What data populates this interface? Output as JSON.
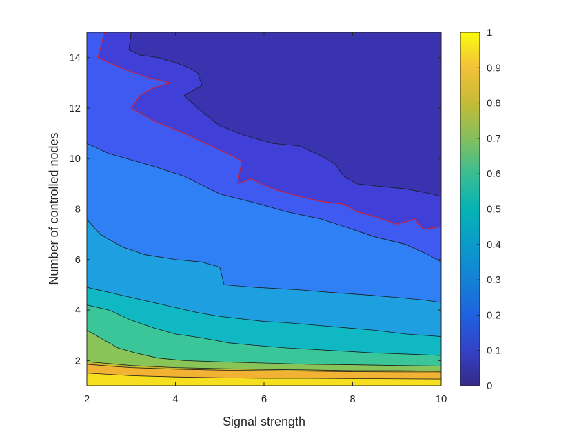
{
  "chart_data": {
    "type": "contour",
    "title": "",
    "xlabel": "Signal strength",
    "ylabel": "Number of controlled nodes",
    "xlim": [
      2,
      10
    ],
    "ylim": [
      1,
      15
    ],
    "x_ticks": [
      2,
      4,
      6,
      8,
      10
    ],
    "y_ticks": [
      2,
      4,
      6,
      8,
      10,
      12,
      14
    ],
    "colorbar": {
      "range": [
        0,
        1
      ],
      "ticks": [
        0,
        0.1,
        0.2,
        0.3,
        0.4,
        0.5,
        0.6,
        0.7,
        0.8,
        0.9,
        1
      ]
    },
    "colormap": "parula",
    "levels": [
      0.05,
      0.1,
      0.2,
      0.3,
      0.4,
      0.5,
      0.6,
      0.7,
      0.8,
      0.9
    ],
    "highlight_level": {
      "value": 0.1,
      "color": "#cc2233"
    },
    "contours": [
      {
        "level": 0.05,
        "fill": "#3a33b0",
        "points": [
          [
            3.0,
            15
          ],
          [
            2.95,
            14.3
          ],
          [
            3.2,
            14.1
          ],
          [
            3.6,
            14.0
          ],
          [
            4.0,
            13.8
          ],
          [
            4.3,
            13.6
          ],
          [
            4.5,
            13.4
          ],
          [
            4.6,
            12.9
          ],
          [
            4.2,
            12.5
          ],
          [
            4.5,
            12.0
          ],
          [
            5.0,
            11.3
          ],
          [
            5.6,
            10.9
          ],
          [
            6.2,
            10.6
          ],
          [
            6.8,
            10.5
          ],
          [
            7.3,
            10.1
          ],
          [
            7.6,
            9.8
          ],
          [
            7.8,
            9.3
          ],
          [
            8.1,
            9.0
          ],
          [
            8.6,
            8.9
          ],
          [
            9.2,
            8.8
          ],
          [
            9.8,
            8.6
          ],
          [
            10,
            8.5
          ]
        ]
      },
      {
        "level": 0.1,
        "fill": "#4040d8",
        "highlight": true,
        "points": [
          [
            2.4,
            15
          ],
          [
            2.25,
            14.0
          ],
          [
            2.5,
            13.8
          ],
          [
            2.9,
            13.5
          ],
          [
            3.4,
            13.2
          ],
          [
            3.9,
            13.0
          ],
          [
            3.5,
            12.8
          ],
          [
            3.2,
            12.5
          ],
          [
            3.0,
            12.0
          ],
          [
            3.5,
            11.5
          ],
          [
            4.2,
            11.0
          ],
          [
            4.8,
            10.5
          ],
          [
            5.3,
            10.1
          ],
          [
            5.5,
            9.9
          ],
          [
            5.4,
            9.0
          ],
          [
            5.7,
            9.2
          ],
          [
            6.2,
            8.8
          ],
          [
            6.8,
            8.5
          ],
          [
            7.3,
            8.3
          ],
          [
            7.8,
            8.2
          ],
          [
            8.1,
            7.9
          ],
          [
            8.5,
            7.7
          ],
          [
            9.0,
            7.4
          ],
          [
            9.4,
            7.6
          ],
          [
            9.6,
            7.2
          ],
          [
            10,
            7.3
          ]
        ]
      },
      {
        "level": 0.2,
        "fill": "#3e5af0",
        "points": [
          [
            2.0,
            10.6
          ],
          [
            2.5,
            10.2
          ],
          [
            3.5,
            9.7
          ],
          [
            4.2,
            9.3
          ],
          [
            5.0,
            8.6
          ],
          [
            5.9,
            8.2
          ],
          [
            6.5,
            7.9
          ],
          [
            7.3,
            7.6
          ],
          [
            8.0,
            7.2
          ],
          [
            8.5,
            6.9
          ],
          [
            9.2,
            6.6
          ],
          [
            9.7,
            6.2
          ],
          [
            10,
            5.9
          ]
        ]
      },
      {
        "level": 0.3,
        "fill": "#2f7ff5",
        "points": [
          [
            2.0,
            7.6
          ],
          [
            2.3,
            7.0
          ],
          [
            2.8,
            6.5
          ],
          [
            3.3,
            6.2
          ],
          [
            4.0,
            6.0
          ],
          [
            4.6,
            5.9
          ],
          [
            5.0,
            5.7
          ],
          [
            5.1,
            5.0
          ],
          [
            5.8,
            4.9
          ],
          [
            6.8,
            4.8
          ],
          [
            7.5,
            4.7
          ],
          [
            8.3,
            4.6
          ],
          [
            9.0,
            4.5
          ],
          [
            9.6,
            4.4
          ],
          [
            10,
            4.3
          ]
        ]
      },
      {
        "level": 0.4,
        "fill": "#1ea0e0",
        "points": [
          [
            2.0,
            4.9
          ],
          [
            2.5,
            4.7
          ],
          [
            3.0,
            4.5
          ],
          [
            3.5,
            4.3
          ],
          [
            4.0,
            4.1
          ],
          [
            4.5,
            3.9
          ],
          [
            5.0,
            3.75
          ],
          [
            5.5,
            3.65
          ],
          [
            6.0,
            3.55
          ],
          [
            6.5,
            3.5
          ],
          [
            7.5,
            3.35
          ],
          [
            8.5,
            3.2
          ],
          [
            9.2,
            3.05
          ],
          [
            10,
            2.95
          ]
        ]
      },
      {
        "level": 0.5,
        "fill": "#10b8c4",
        "points": [
          [
            2.0,
            4.2
          ],
          [
            2.5,
            4.0
          ],
          [
            3.0,
            3.6
          ],
          [
            3.5,
            3.3
          ],
          [
            4.0,
            3.05
          ],
          [
            4.6,
            2.9
          ],
          [
            5.2,
            2.7
          ],
          [
            5.8,
            2.6
          ],
          [
            6.5,
            2.5
          ],
          [
            7.5,
            2.4
          ],
          [
            8.5,
            2.3
          ],
          [
            9.3,
            2.25
          ],
          [
            10,
            2.2
          ]
        ]
      },
      {
        "level": 0.6,
        "fill": "#3bc69a",
        "points": [
          [
            2.0,
            3.2
          ],
          [
            2.3,
            2.9
          ],
          [
            2.7,
            2.5
          ],
          [
            3.1,
            2.3
          ],
          [
            3.6,
            2.1
          ],
          [
            4.2,
            2.0
          ],
          [
            5.0,
            1.95
          ],
          [
            6.0,
            1.9
          ],
          [
            7.0,
            1.85
          ],
          [
            8.0,
            1.83
          ],
          [
            9.0,
            1.8
          ],
          [
            10,
            1.78
          ]
        ]
      },
      {
        "level": 0.7,
        "fill": "#88c458",
        "points": [
          [
            2.0,
            1.95
          ],
          [
            2.5,
            1.88
          ],
          [
            3.0,
            1.8
          ],
          [
            4.0,
            1.72
          ],
          [
            5.0,
            1.68
          ],
          [
            6.0,
            1.65
          ],
          [
            7.0,
            1.63
          ],
          [
            8.0,
            1.6
          ],
          [
            9.0,
            1.6
          ],
          [
            10,
            1.58
          ]
        ]
      },
      {
        "level": 0.8,
        "fill": "#c8b830",
        "points": [
          [
            2.0,
            1.85
          ],
          [
            2.5,
            1.78
          ],
          [
            3.0,
            1.72
          ],
          [
            4.0,
            1.66
          ],
          [
            5.0,
            1.62
          ],
          [
            6.0,
            1.6
          ],
          [
            7.0,
            1.58
          ],
          [
            8.0,
            1.56
          ],
          [
            9.0,
            1.55
          ],
          [
            10,
            1.55
          ]
        ]
      },
      {
        "level": 0.9,
        "fill": "#f2b233",
        "points": [
          [
            2.0,
            1.5
          ],
          [
            2.5,
            1.45
          ],
          [
            3.0,
            1.4
          ],
          [
            4.0,
            1.35
          ],
          [
            5.0,
            1.32
          ],
          [
            6.0,
            1.3
          ],
          [
            7.0,
            1.3
          ],
          [
            8.0,
            1.29
          ],
          [
            9.0,
            1.28
          ],
          [
            10,
            1.27
          ]
        ]
      }
    ],
    "base_fill": "#f6df1e"
  }
}
